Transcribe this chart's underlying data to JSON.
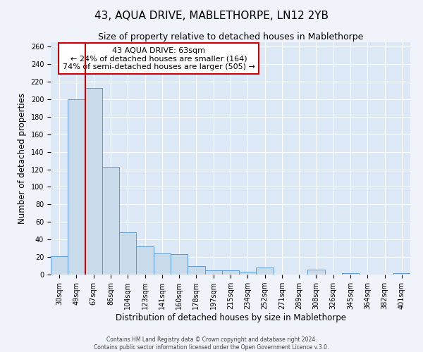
{
  "title": "43, AQUA DRIVE, MABLETHORPE, LN12 2YB",
  "subtitle": "Size of property relative to detached houses in Mablethorpe",
  "xlabel": "Distribution of detached houses by size in Mablethorpe",
  "ylabel": "Number of detached properties",
  "categories": [
    "30sqm",
    "49sqm",
    "67sqm",
    "86sqm",
    "104sqm",
    "123sqm",
    "141sqm",
    "160sqm",
    "178sqm",
    "197sqm",
    "215sqm",
    "234sqm",
    "252sqm",
    "271sqm",
    "289sqm",
    "308sqm",
    "326sqm",
    "345sqm",
    "364sqm",
    "382sqm",
    "401sqm"
  ],
  "values": [
    21,
    200,
    213,
    123,
    48,
    32,
    24,
    23,
    10,
    5,
    5,
    3,
    8,
    0,
    0,
    6,
    0,
    2,
    0,
    0,
    2
  ],
  "bar_color": "#c9daea",
  "bar_edge_color": "#5b9bd5",
  "red_line_x": 1.5,
  "annotation_title": "43 AQUA DRIVE: 63sqm",
  "annotation_line1": "← 24% of detached houses are smaller (164)",
  "annotation_line2": "74% of semi-detached houses are larger (505) →",
  "annotation_box_facecolor": "#ffffff",
  "annotation_box_edgecolor": "#cc0000",
  "ylim": [
    0,
    265
  ],
  "yticks": [
    0,
    20,
    40,
    60,
    80,
    100,
    120,
    140,
    160,
    180,
    200,
    220,
    240,
    260
  ],
  "footer_line1": "Contains HM Land Registry data © Crown copyright and database right 2024.",
  "footer_line2": "Contains public sector information licensed under the Open Government Licence v.3.0.",
  "fig_facecolor": "#f0f4fa",
  "axes_facecolor": "#dce8f5",
  "title_fontsize": 11,
  "subtitle_fontsize": 9,
  "tick_fontsize": 7,
  "label_fontsize": 8.5,
  "annotation_fontsize": 8,
  "footer_fontsize": 5.5
}
